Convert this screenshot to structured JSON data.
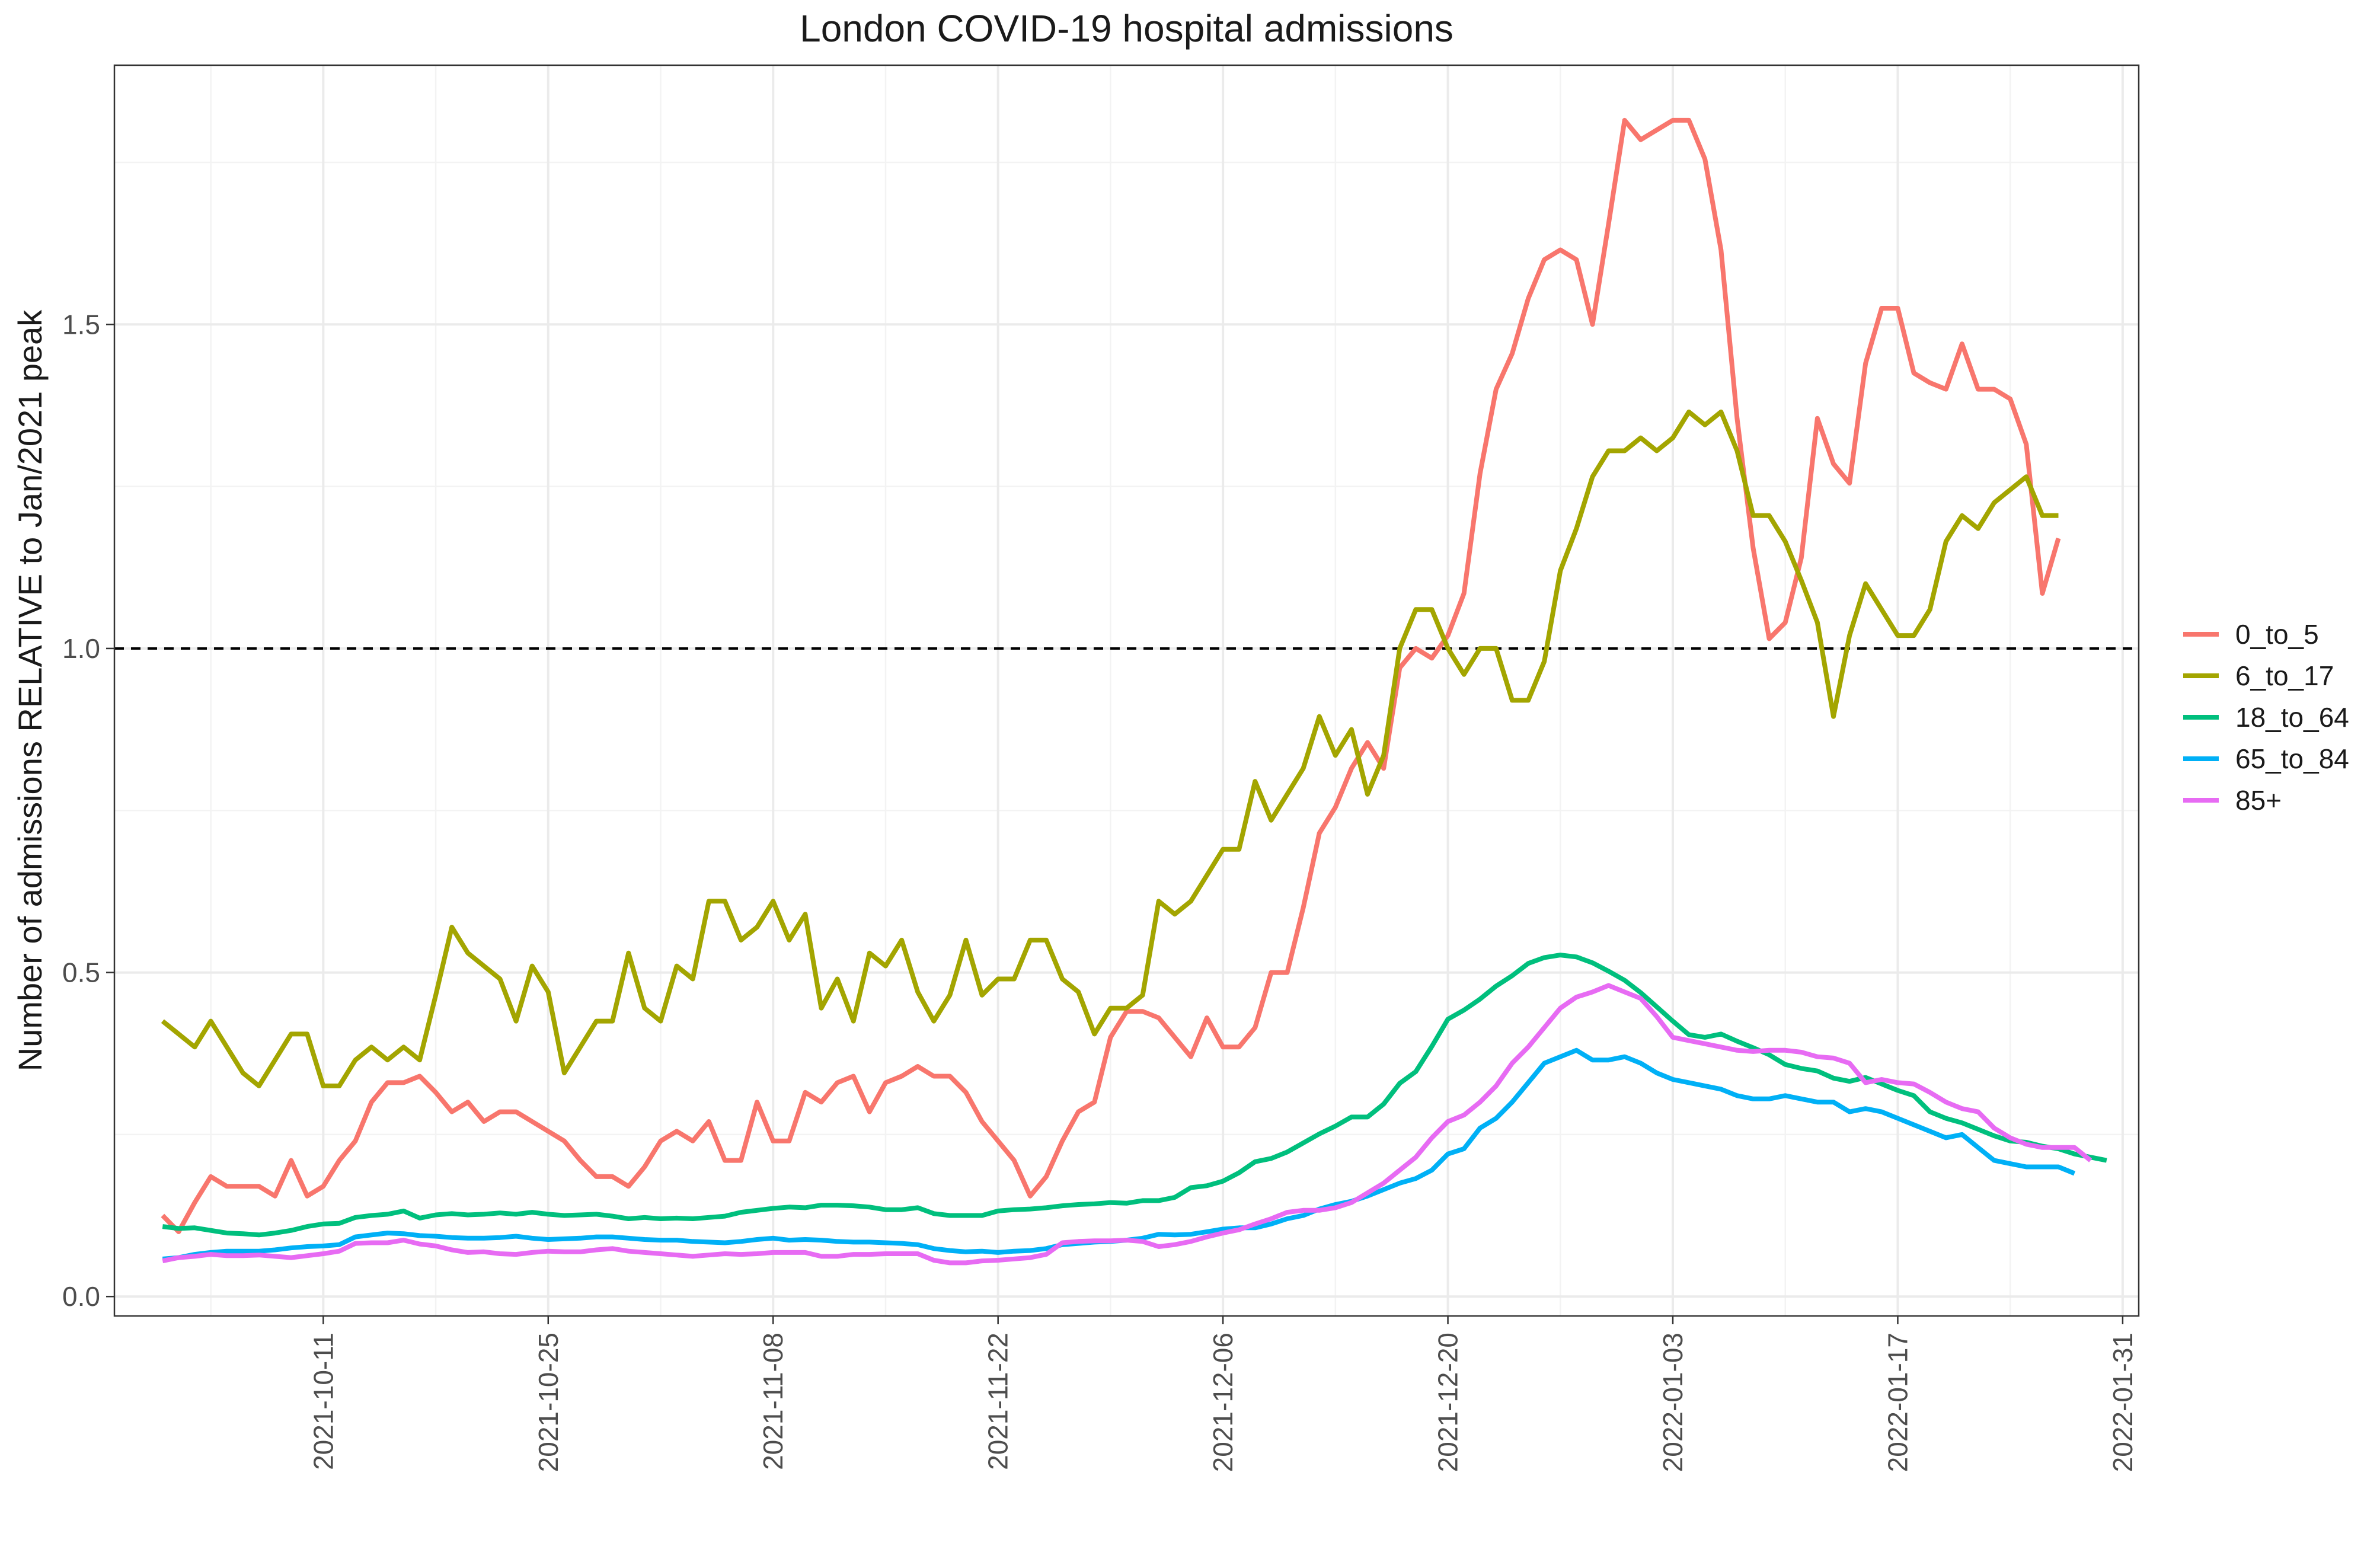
{
  "chart_data": {
    "type": "line",
    "title": "London COVID-19 hospital admissions",
    "xlabel": "",
    "ylabel": "Number of admissions RELATIVE to Jan/2021 peak",
    "x_start": "2021-10-01",
    "x_end": "2022-01-27",
    "xlim": [
      "2021-09-28",
      "2022-02-01"
    ],
    "ylim": [
      -0.03,
      1.9
    ],
    "x_ticks": [
      "2021-10-11",
      "2021-10-25",
      "2021-11-08",
      "2021-11-22",
      "2021-12-06",
      "2021-12-20",
      "2022-01-03",
      "2022-01-17",
      "2022-01-31"
    ],
    "y_ticks": [
      {
        "value": 0.0,
        "label": "0.0"
      },
      {
        "value": 0.5,
        "label": "0.5"
      },
      {
        "value": 1.0,
        "label": "1.0"
      },
      {
        "value": 1.5,
        "label": "1.5"
      }
    ],
    "reference_line": {
      "y": 1.0,
      "style": "dashed"
    },
    "grid": true,
    "legend": {
      "position": "right"
    },
    "series": [
      {
        "name": "0_to_5",
        "color": "#F8766D",
        "values": [
          0.125,
          0.1,
          0.145,
          0.185,
          0.17,
          0.17,
          0.17,
          0.155,
          0.21,
          0.155,
          0.17,
          0.21,
          0.24,
          0.3,
          0.33,
          0.33,
          0.34,
          0.315,
          0.285,
          0.3,
          0.27,
          0.285,
          0.285,
          0.27,
          0.255,
          0.24,
          0.21,
          0.185,
          0.185,
          0.17,
          0.2,
          0.24,
          0.255,
          0.24,
          0.27,
          0.21,
          0.21,
          0.3,
          0.24,
          0.24,
          0.315,
          0.3,
          0.33,
          0.34,
          0.285,
          0.33,
          0.34,
          0.355,
          0.34,
          0.34,
          0.315,
          0.27,
          0.24,
          0.21,
          0.155,
          0.185,
          0.24,
          0.285,
          0.3,
          0.4,
          0.44,
          0.44,
          0.43,
          0.4,
          0.37,
          0.43,
          0.385,
          0.385,
          0.415,
          0.5,
          0.5,
          0.6,
          0.715,
          0.755,
          0.815,
          0.855,
          0.815,
          0.97,
          1.0,
          0.985,
          1.02,
          1.085,
          1.27,
          1.4,
          1.455,
          1.54,
          1.6,
          1.615,
          1.6,
          1.5,
          1.655,
          1.815,
          1.785,
          1.8,
          1.815,
          1.815,
          1.755,
          1.615,
          1.355,
          1.155,
          1.015,
          1.04,
          1.14,
          1.355,
          1.285,
          1.255,
          1.44,
          1.525,
          1.525,
          1.425,
          1.41,
          1.4,
          1.47,
          1.4,
          1.4,
          1.385,
          1.315,
          1.085,
          1.17
        ]
      },
      {
        "name": "6_to_17",
        "color": "#A3A500",
        "values": [
          0.425,
          0.405,
          0.385,
          0.425,
          0.385,
          0.345,
          0.325,
          0.365,
          0.405,
          0.405,
          0.325,
          0.325,
          0.365,
          0.385,
          0.365,
          0.385,
          0.365,
          0.465,
          0.57,
          0.53,
          0.51,
          0.49,
          0.425,
          0.51,
          0.47,
          0.345,
          0.385,
          0.425,
          0.425,
          0.53,
          0.445,
          0.425,
          0.51,
          0.49,
          0.61,
          0.61,
          0.55,
          0.57,
          0.61,
          0.55,
          0.59,
          0.445,
          0.49,
          0.425,
          0.53,
          0.51,
          0.55,
          0.47,
          0.425,
          0.465,
          0.55,
          0.465,
          0.49,
          0.49,
          0.55,
          0.55,
          0.49,
          0.47,
          0.405,
          0.445,
          0.445,
          0.465,
          0.61,
          0.59,
          0.61,
          0.65,
          0.69,
          0.69,
          0.795,
          0.735,
          0.775,
          0.815,
          0.895,
          0.835,
          0.875,
          0.775,
          0.835,
          1.0,
          1.06,
          1.06,
          1.0,
          0.96,
          1.0,
          1.0,
          0.92,
          0.92,
          0.98,
          1.12,
          1.185,
          1.265,
          1.305,
          1.305,
          1.325,
          1.305,
          1.325,
          1.365,
          1.345,
          1.365,
          1.305,
          1.205,
          1.205,
          1.165,
          1.105,
          1.04,
          0.895,
          1.02,
          1.1,
          1.06,
          1.02,
          1.02,
          1.06,
          1.165,
          1.205,
          1.185,
          1.225,
          1.245,
          1.265,
          1.205,
          1.205
        ]
      },
      {
        "name": "18_to_64",
        "color": "#00BF7D",
        "values": [
          0.108,
          0.105,
          0.106,
          0.102,
          0.098,
          0.097,
          0.095,
          0.098,
          0.102,
          0.108,
          0.112,
          0.113,
          0.122,
          0.125,
          0.127,
          0.132,
          0.121,
          0.126,
          0.128,
          0.126,
          0.127,
          0.129,
          0.127,
          0.13,
          0.127,
          0.125,
          0.126,
          0.127,
          0.124,
          0.12,
          0.122,
          0.12,
          0.121,
          0.12,
          0.122,
          0.124,
          0.13,
          0.133,
          0.136,
          0.138,
          0.137,
          0.141,
          0.141,
          0.14,
          0.138,
          0.134,
          0.134,
          0.137,
          0.128,
          0.125,
          0.125,
          0.125,
          0.132,
          0.134,
          0.135,
          0.137,
          0.14,
          0.142,
          0.143,
          0.145,
          0.144,
          0.148,
          0.148,
          0.153,
          0.168,
          0.171,
          0.178,
          0.191,
          0.208,
          0.213,
          0.223,
          0.237,
          0.251,
          0.263,
          0.277,
          0.277,
          0.297,
          0.329,
          0.347,
          0.386,
          0.428,
          0.442,
          0.459,
          0.479,
          0.495,
          0.514,
          0.523,
          0.527,
          0.524,
          0.515,
          0.502,
          0.488,
          0.469,
          0.447,
          0.425,
          0.404,
          0.4,
          0.405,
          0.394,
          0.384,
          0.373,
          0.358,
          0.352,
          0.348,
          0.337,
          0.332,
          0.338,
          0.328,
          0.318,
          0.31,
          0.285,
          0.275,
          0.268,
          0.258,
          0.248,
          0.24,
          0.238,
          0.232,
          0.228,
          0.22,
          0.215,
          0.21
        ]
      },
      {
        "name": "65_to_84",
        "color": "#00B0F6",
        "values": [
          0.058,
          0.06,
          0.065,
          0.068,
          0.07,
          0.07,
          0.07,
          0.072,
          0.075,
          0.077,
          0.078,
          0.08,
          0.092,
          0.095,
          0.098,
          0.097,
          0.094,
          0.093,
          0.091,
          0.09,
          0.09,
          0.091,
          0.093,
          0.09,
          0.088,
          0.089,
          0.09,
          0.092,
          0.092,
          0.09,
          0.088,
          0.087,
          0.087,
          0.085,
          0.084,
          0.083,
          0.085,
          0.088,
          0.09,
          0.087,
          0.088,
          0.087,
          0.085,
          0.084,
          0.084,
          0.083,
          0.082,
          0.08,
          0.074,
          0.071,
          0.069,
          0.07,
          0.068,
          0.07,
          0.071,
          0.074,
          0.08,
          0.082,
          0.084,
          0.085,
          0.087,
          0.09,
          0.096,
          0.095,
          0.096,
          0.1,
          0.104,
          0.106,
          0.106,
          0.112,
          0.12,
          0.125,
          0.135,
          0.142,
          0.147,
          0.155,
          0.165,
          0.175,
          0.182,
          0.195,
          0.22,
          0.228,
          0.26,
          0.275,
          0.3,
          0.33,
          0.36,
          0.37,
          0.38,
          0.365,
          0.365,
          0.37,
          0.36,
          0.345,
          0.335,
          0.33,
          0.325,
          0.32,
          0.31,
          0.305,
          0.305,
          0.31,
          0.305,
          0.3,
          0.3,
          0.285,
          0.29,
          0.285,
          0.275,
          0.265,
          0.255,
          0.245,
          0.25,
          0.23,
          0.21,
          0.205,
          0.2,
          0.2,
          0.2,
          0.19
        ]
      },
      {
        "name": "85+",
        "color": "#E76BF3",
        "values": [
          0.055,
          0.06,
          0.062,
          0.065,
          0.063,
          0.063,
          0.064,
          0.062,
          0.06,
          0.063,
          0.066,
          0.07,
          0.082,
          0.083,
          0.083,
          0.087,
          0.081,
          0.078,
          0.072,
          0.068,
          0.069,
          0.066,
          0.065,
          0.068,
          0.07,
          0.069,
          0.069,
          0.072,
          0.074,
          0.07,
          0.068,
          0.066,
          0.064,
          0.062,
          0.064,
          0.066,
          0.065,
          0.066,
          0.068,
          0.068,
          0.068,
          0.062,
          0.062,
          0.065,
          0.065,
          0.066,
          0.066,
          0.066,
          0.056,
          0.052,
          0.052,
          0.055,
          0.056,
          0.058,
          0.06,
          0.065,
          0.083,
          0.085,
          0.086,
          0.086,
          0.087,
          0.085,
          0.077,
          0.08,
          0.085,
          0.092,
          0.098,
          0.103,
          0.112,
          0.12,
          0.13,
          0.133,
          0.133,
          0.137,
          0.145,
          0.16,
          0.175,
          0.195,
          0.215,
          0.245,
          0.27,
          0.28,
          0.3,
          0.325,
          0.36,
          0.385,
          0.415,
          0.445,
          0.462,
          0.47,
          0.48,
          0.47,
          0.46,
          0.432,
          0.4,
          0.395,
          0.39,
          0.385,
          0.38,
          0.378,
          0.38,
          0.38,
          0.377,
          0.37,
          0.368,
          0.36,
          0.33,
          0.335,
          0.33,
          0.328,
          0.315,
          0.3,
          0.29,
          0.285,
          0.26,
          0.245,
          0.235,
          0.23,
          0.23,
          0.23,
          0.21
        ]
      }
    ]
  }
}
